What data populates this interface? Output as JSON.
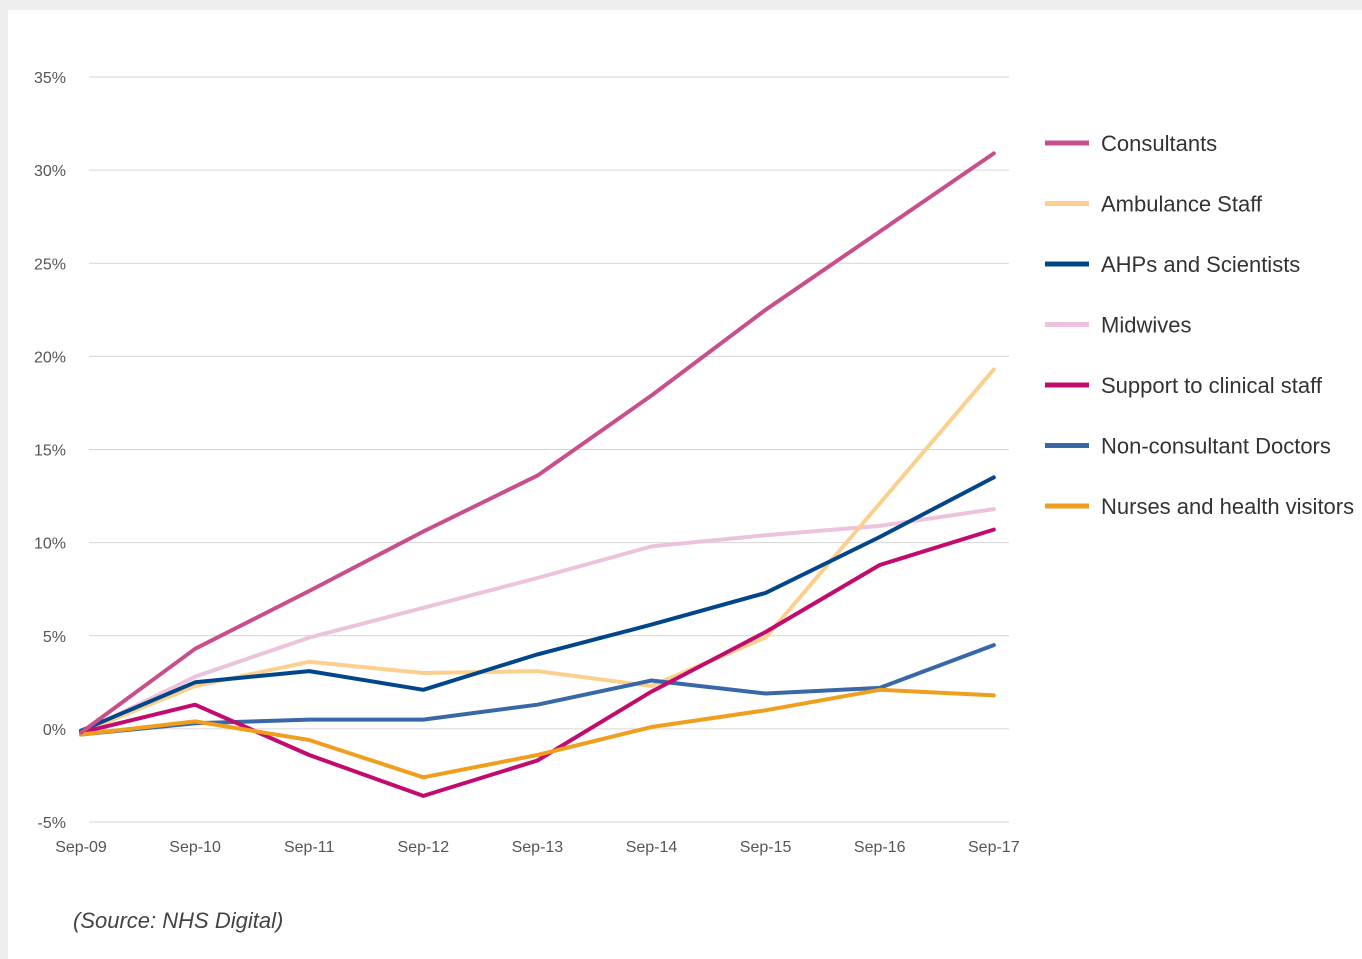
{
  "source_note": "(Source: NHS Digital)",
  "chart_data": {
    "type": "line",
    "title": "",
    "xlabel": "",
    "ylabel": "",
    "x": [
      "Sep-09",
      "Sep-10",
      "Sep-11",
      "Sep-12",
      "Sep-13",
      "Sep-14",
      "Sep-15",
      "Sep-16",
      "Sep-17"
    ],
    "ylim": [
      -5,
      35
    ],
    "yticks": [
      -5,
      0,
      5,
      10,
      15,
      20,
      25,
      30,
      35
    ],
    "ytick_labels": [
      "-5%",
      "0%",
      "5%",
      "10%",
      "15%",
      "20%",
      "25%",
      "30%",
      "35%"
    ],
    "grid": true,
    "legend_position": "right",
    "series": [
      {
        "name": "Consultants",
        "color": "#c94f8c",
        "values": [
          -0.2,
          4.3,
          7.4,
          10.6,
          13.6,
          17.9,
          22.5,
          26.7,
          30.9
        ]
      },
      {
        "name": "Ambulance Staff",
        "color": "#fbd08f",
        "values": [
          -0.2,
          2.3,
          3.6,
          3.0,
          3.1,
          2.3,
          4.9,
          12.1,
          19.3
        ]
      },
      {
        "name": "AHPs and Scientists",
        "color": "#02468a",
        "values": [
          -0.1,
          2.5,
          3.1,
          2.1,
          4.0,
          5.6,
          7.3,
          10.3,
          13.5
        ]
      },
      {
        "name": "Midwives",
        "color": "#ecc3dc",
        "values": [
          -0.2,
          2.8,
          4.9,
          6.5,
          8.1,
          9.8,
          10.4,
          10.9,
          11.8
        ]
      },
      {
        "name": "Support to clinical staff",
        "color": "#c10b6e",
        "values": [
          -0.2,
          1.3,
          -1.4,
          -3.6,
          -1.7,
          2.0,
          5.2,
          8.8,
          10.7
        ]
      },
      {
        "name": "Non-consultant Doctors",
        "color": "#3868a8",
        "values": [
          -0.3,
          0.3,
          0.5,
          0.5,
          1.3,
          2.6,
          1.9,
          2.2,
          4.5
        ]
      },
      {
        "name": "Nurses and health visitors",
        "color": "#f09e1e",
        "values": [
          -0.3,
          0.4,
          -0.6,
          -2.6,
          -1.4,
          0.1,
          1.0,
          2.1,
          1.8
        ]
      }
    ]
  }
}
